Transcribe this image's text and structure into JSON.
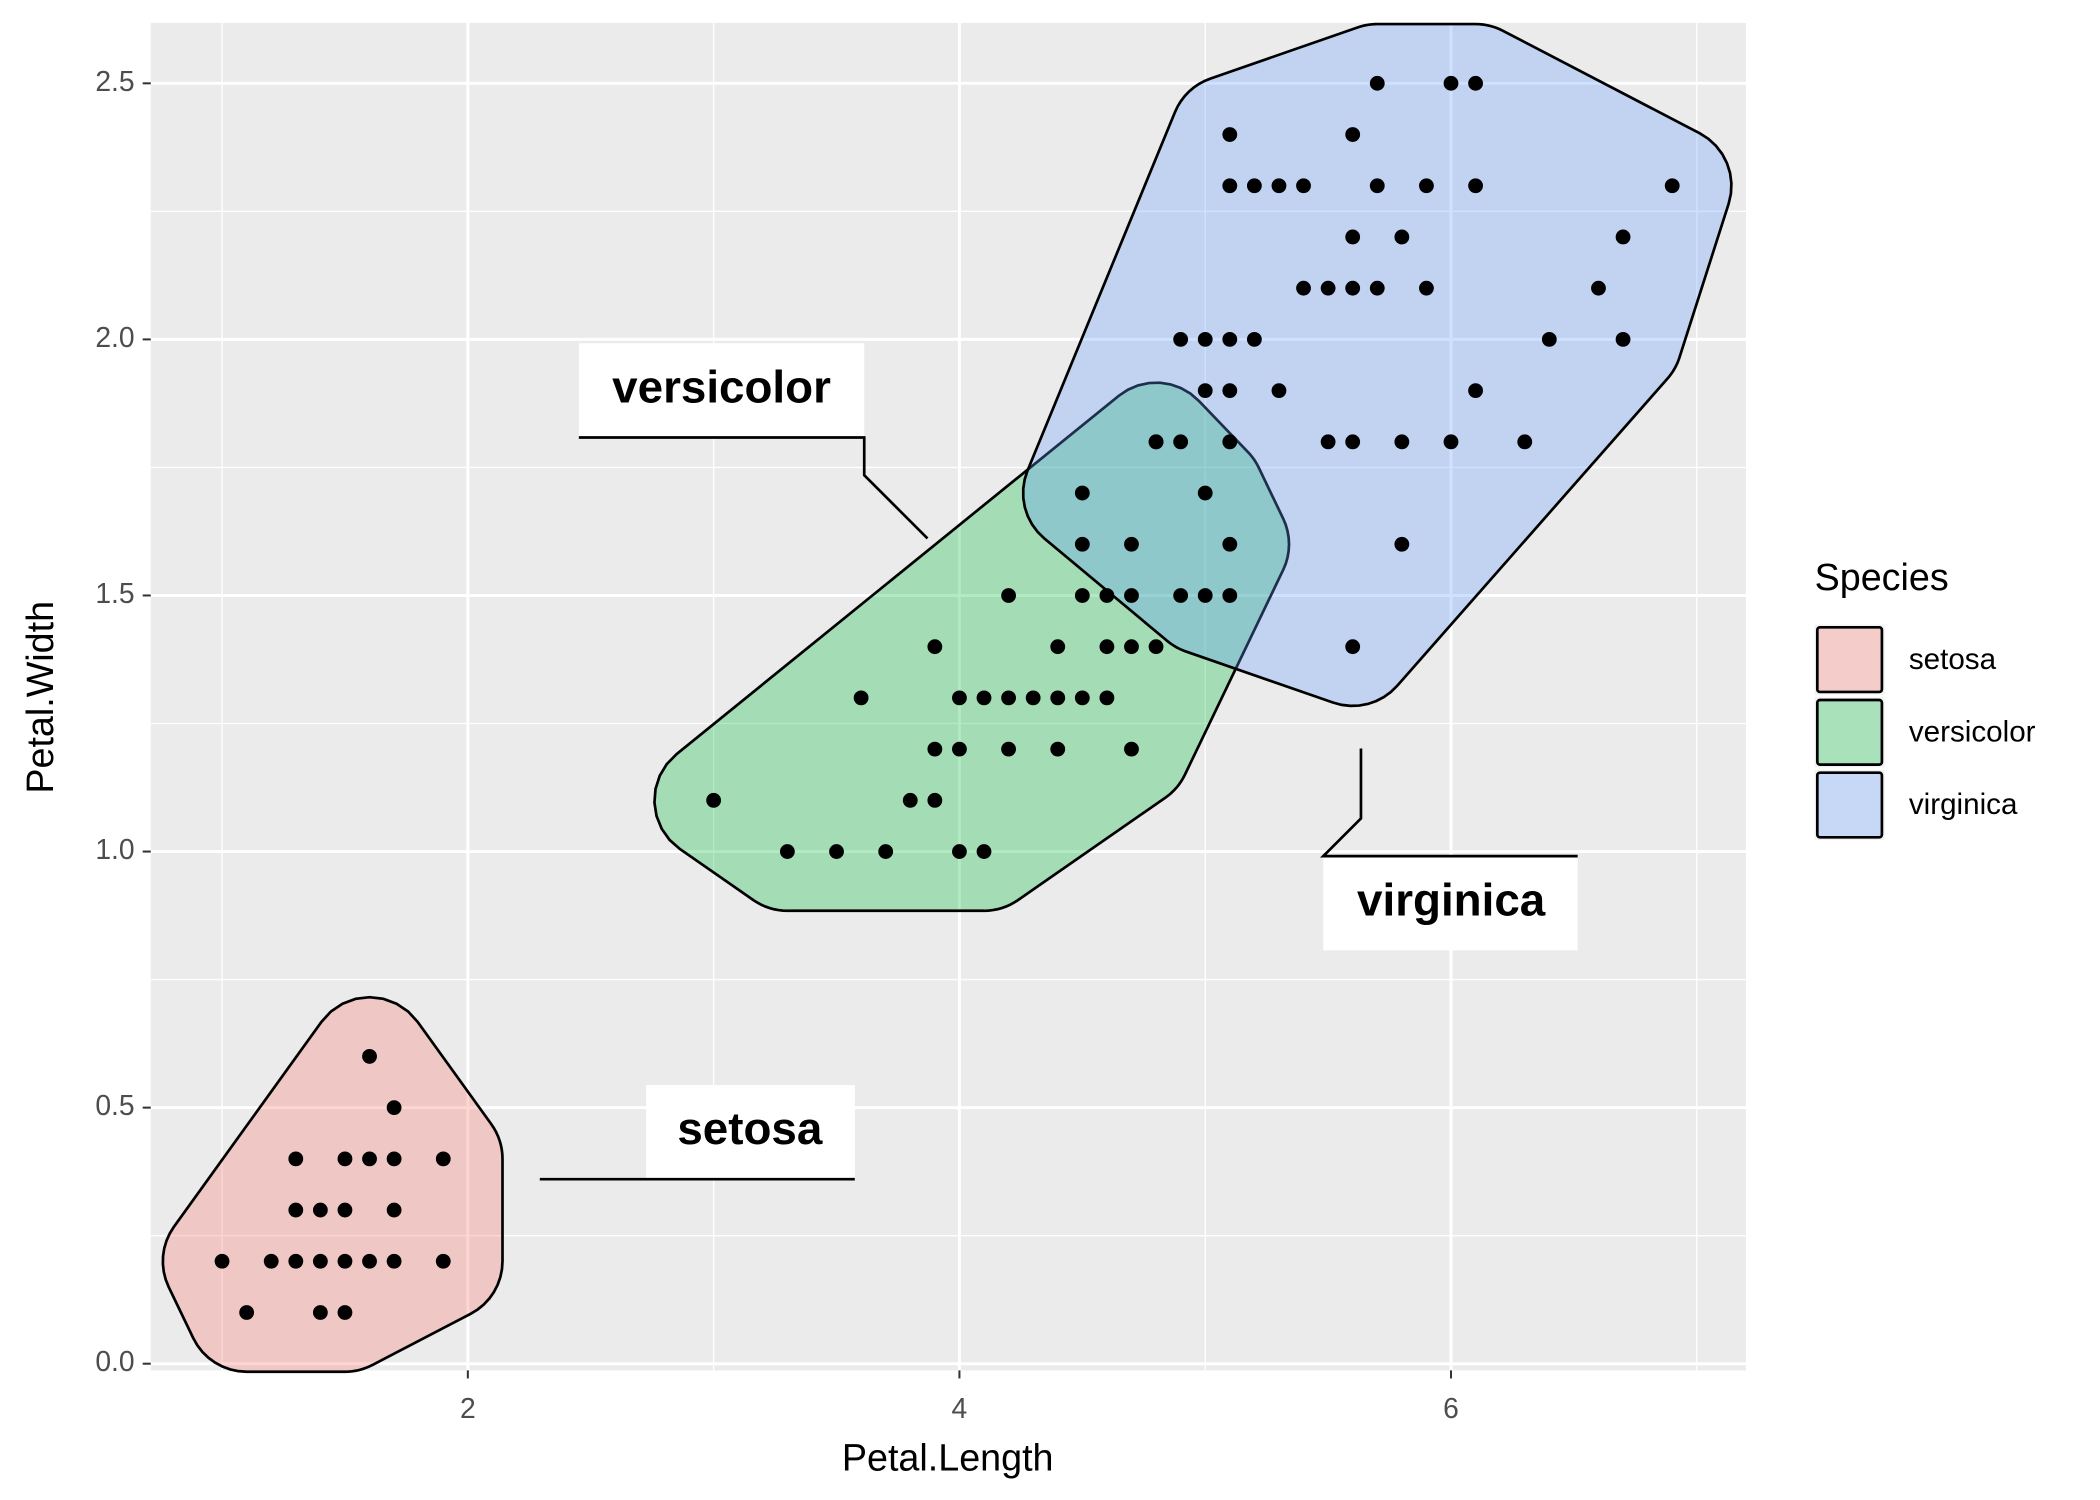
{
  "chart_data": {
    "type": "scatter",
    "x_label": "Petal.Length",
    "y_label": "Petal.Width",
    "xlim": [
      0.71,
      7.2
    ],
    "ylim": [
      -0.013,
      2.618
    ],
    "xticks": [
      2,
      4,
      6
    ],
    "yticks": [
      {
        "value": 0,
        "label": "0.0"
      },
      0.5,
      {
        "value": 1,
        "label": "1.0"
      },
      1.5,
      {
        "value": 2,
        "label": "2.0"
      },
      2.5
    ],
    "grid": true,
    "legend_title": "Species",
    "legend_position": "right",
    "series": [
      {
        "name": "setosa",
        "color": "#F8766D",
        "x": [
          1.1,
          1.4,
          1.5,
          1.0,
          1.2,
          1.3,
          1.4,
          1.5,
          1.6,
          1.7,
          1.9,
          1.3,
          1.4,
          1.5,
          1.7,
          1.3,
          1.5,
          1.6,
          1.7,
          1.9,
          1.7,
          1.6
        ],
        "values": [
          0.1,
          0.1,
          0.1,
          0.2,
          0.2,
          0.2,
          0.2,
          0.2,
          0.2,
          0.2,
          0.2,
          0.3,
          0.3,
          0.3,
          0.3,
          0.4,
          0.4,
          0.4,
          0.4,
          0.4,
          0.5,
          0.6
        ]
      },
      {
        "name": "versicolor",
        "color": "#00BA38",
        "x": [
          3.3,
          3.5,
          3.7,
          4.0,
          4.1,
          3.0,
          3.8,
          3.9,
          3.9,
          4.0,
          4.2,
          4.4,
          4.7,
          3.6,
          4.0,
          4.1,
          4.2,
          4.3,
          4.4,
          4.5,
          4.6,
          3.9,
          4.4,
          4.6,
          4.7,
          4.8,
          4.2,
          4.5,
          4.6,
          4.7,
          4.9,
          4.5,
          4.7,
          5.1,
          5.0,
          4.8
        ],
        "values": [
          1.0,
          1.0,
          1.0,
          1.0,
          1.0,
          1.1,
          1.1,
          1.1,
          1.2,
          1.2,
          1.2,
          1.2,
          1.2,
          1.3,
          1.3,
          1.3,
          1.3,
          1.3,
          1.3,
          1.3,
          1.3,
          1.4,
          1.4,
          1.4,
          1.4,
          1.4,
          1.5,
          1.5,
          1.5,
          1.5,
          1.5,
          1.6,
          1.6,
          1.6,
          1.7,
          1.8
        ]
      },
      {
        "name": "virginica",
        "color": "#619CFF",
        "x": [
          5.6,
          5.0,
          5.1,
          5.8,
          4.5,
          4.8,
          4.9,
          5.1,
          5.5,
          5.6,
          5.8,
          6.0,
          6.3,
          5.0,
          5.1,
          5.3,
          6.1,
          4.9,
          5.0,
          5.1,
          5.2,
          6.4,
          6.7,
          5.4,
          5.5,
          5.6,
          5.7,
          5.9,
          6.6,
          5.6,
          5.8,
          6.7,
          5.1,
          5.2,
          5.3,
          5.4,
          5.7,
          5.9,
          6.1,
          6.9,
          5.1,
          5.6,
          5.7,
          6.0,
          6.1
        ],
        "values": [
          1.4,
          1.5,
          1.5,
          1.6,
          1.7,
          1.8,
          1.8,
          1.8,
          1.8,
          1.8,
          1.8,
          1.8,
          1.8,
          1.9,
          1.9,
          1.9,
          1.9,
          2.0,
          2.0,
          2.0,
          2.0,
          2.0,
          2.0,
          2.1,
          2.1,
          2.1,
          2.1,
          2.1,
          2.1,
          2.2,
          2.2,
          2.2,
          2.3,
          2.3,
          2.3,
          2.3,
          2.3,
          2.3,
          2.3,
          2.3,
          2.4,
          2.4,
          2.5,
          2.5,
          2.5
        ]
      }
    ]
  }
}
